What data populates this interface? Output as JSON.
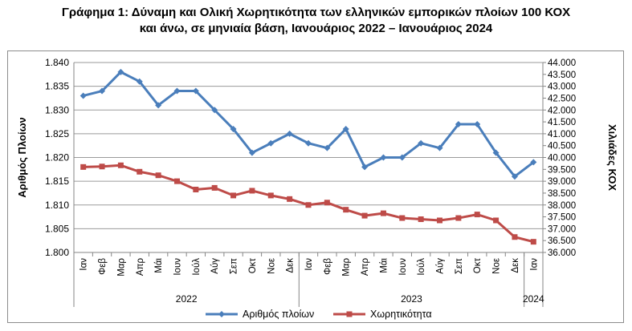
{
  "title_line1": "Γράφημα 1: Δύναμη και Ολική Χωρητικότητα των ελληνικών εμπορικών πλοίων 100 ΚΟΧ",
  "title_line2": "και άνω, σε μηνιαία βάση, Ιανουάριος 2022 – Ιανουάριος 2024",
  "colors": {
    "ships": "#4a7ebb",
    "capacity": "#be4b48",
    "grid": "#9a9a9a"
  },
  "chart_data": {
    "type": "line",
    "title": "Γράφημα 1: Δύναμη και Ολική Χωρητικότητα των ελληνικών εμπορικών πλοίων 100 ΚΟΧ και άνω, σε μηνιαία βάση, Ιανουάριος 2022 – Ιανουάριος 2024",
    "categories": [
      "Ιαν",
      "Φεβ",
      "Μαρ",
      "Απρ",
      "Μάι",
      "Ιουν",
      "Ιούλ",
      "Αύγ",
      "Σεπ",
      "Οκτ",
      "Νοε",
      "Δεκ",
      "Ιαν",
      "Φεβ",
      "Μαρ",
      "Απρ",
      "Μάι",
      "Ιουν",
      "Ιούλ",
      "Αύγ",
      "Σεπ",
      "Οκτ",
      "Νοε",
      "Δεκ",
      "Ιαν"
    ],
    "year_groups": [
      {
        "label": "2022",
        "from": 0,
        "to": 11
      },
      {
        "label": "2023",
        "from": 12,
        "to": 23
      },
      {
        "label": "2024",
        "from": 24,
        "to": 24
      }
    ],
    "ylabel": "Αριθμός Πλοίων",
    "y2label": "Χιλιάδες ΚΟΧ",
    "ylim": [
      1.8,
      1.84
    ],
    "y2lim": [
      36.0,
      44.0
    ],
    "yticks": [
      "1.800",
      "1.805",
      "1.810",
      "1.815",
      "1.820",
      "1.825",
      "1.830",
      "1.835",
      "1.840"
    ],
    "y2ticks": [
      "36.000",
      "36.500",
      "37.000",
      "37.500",
      "38.000",
      "38.500",
      "39.000",
      "39.500",
      "40.000",
      "40.500",
      "41.000",
      "41.500",
      "42.000",
      "42.500",
      "43.000",
      "43.500",
      "44.000"
    ],
    "series": [
      {
        "name": "Αριθμός πλοίων",
        "axis": "left",
        "values": [
          1.833,
          1.834,
          1.838,
          1.836,
          1.831,
          1.834,
          1.834,
          1.83,
          1.826,
          1.821,
          1.823,
          1.825,
          1.823,
          1.822,
          1.826,
          1.818,
          1.82,
          1.82,
          1.823,
          1.822,
          1.827,
          1.827,
          1.821,
          1.816,
          1.819
        ]
      },
      {
        "name": "Χωρητικότητα",
        "axis": "right",
        "values": [
          39.6,
          39.62,
          39.67,
          39.4,
          39.25,
          39.0,
          38.65,
          38.72,
          38.4,
          38.6,
          38.4,
          38.25,
          38.0,
          38.1,
          37.8,
          37.55,
          37.65,
          37.45,
          37.4,
          37.35,
          37.45,
          37.6,
          37.35,
          36.65,
          36.45
        ]
      }
    ],
    "grid": true,
    "legend_position": "bottom"
  }
}
